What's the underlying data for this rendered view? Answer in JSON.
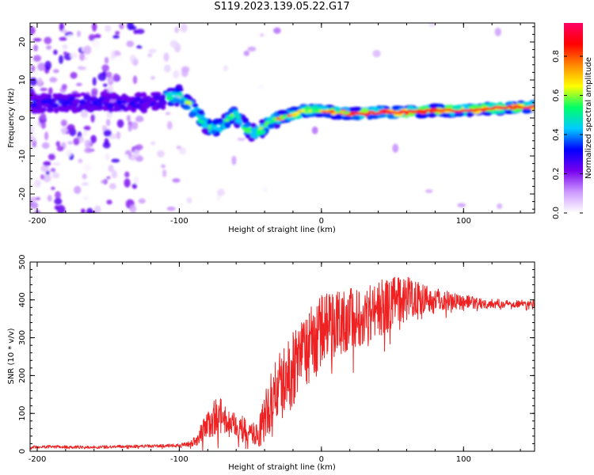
{
  "title": "S119.2023.139.05.22.G17",
  "colors": {
    "snr_line": "#ee2222",
    "axis": "#000000",
    "plot_bg": "#ffffff"
  },
  "colorbar": {
    "label": "Normalized spectral amplitude",
    "ticks": [
      "0.0",
      "0.2",
      "0.4",
      "0.6",
      "0.8"
    ],
    "tick_values": [
      0.0,
      0.2,
      0.4,
      0.6,
      0.8
    ],
    "range": [
      0,
      0.97
    ],
    "colormap": [
      "#ffffff",
      "#cc99ff",
      "#7700ee",
      "#0000ff",
      "#00ccff",
      "#00ff66",
      "#ffff00",
      "#ff8800",
      "#ff0000",
      "#ff0066"
    ]
  },
  "chart_data": [
    {
      "type": "heatmap",
      "xlabel": "Height of straight line (km)",
      "ylabel": "Frequency (Hz)",
      "xlim": [
        -205,
        150
      ],
      "ylim": [
        -25,
        25
      ],
      "xticks": [
        "-200",
        "-100",
        "0",
        "100"
      ],
      "xtick_values": [
        -200,
        -100,
        0,
        100
      ],
      "yticks": [
        "-20",
        "-10",
        "0",
        "10",
        "20"
      ],
      "ytick_values": [
        -20,
        -10,
        0,
        10,
        20
      ],
      "ridge": {
        "x": [
          -205,
          -180,
          -160,
          -140,
          -120,
          -100,
          -92,
          -85,
          -78,
          -70,
          -62,
          -55,
          -48,
          -42,
          -36,
          -30,
          -20,
          -10,
          0,
          20,
          40,
          60,
          80,
          100,
          120,
          150
        ],
        "freq": [
          4,
          4,
          4.2,
          4,
          4,
          6,
          3,
          0,
          -3,
          -2,
          1,
          -2,
          -4,
          -3,
          -1,
          0,
          1,
          2,
          2,
          1,
          1.5,
          1.5,
          2,
          2,
          2.5,
          3
        ]
      }
    },
    {
      "type": "line",
      "xlabel": "Height of straight line (km)",
      "ylabel": "SNR (10 * v/v)",
      "xlim": [
        -205,
        150
      ],
      "ylim": [
        0,
        500
      ],
      "xticks": [
        "-200",
        "-100",
        "0",
        "100"
      ],
      "xtick_values": [
        -200,
        -100,
        0,
        100
      ],
      "yticks": [
        "0",
        "100",
        "200",
        "300",
        "400",
        "500"
      ],
      "ytick_values": [
        0,
        100,
        200,
        300,
        400,
        500
      ],
      "series": [
        {
          "x": [
            -205,
            -190,
            -175,
            -160,
            -145,
            -130,
            -115,
            -100,
            -92,
            -88,
            -84,
            -80,
            -76,
            -72,
            -68,
            -64,
            -60,
            -56,
            -52,
            -48,
            -44,
            -40,
            -36,
            -32,
            -28,
            -24,
            -20,
            -16,
            -12,
            -8,
            -4,
            0,
            4,
            8,
            12,
            16,
            20,
            24,
            28,
            32,
            36,
            40,
            44,
            48,
            52,
            56,
            60,
            64,
            68,
            72,
            76,
            80,
            84,
            88,
            92,
            96,
            100,
            104,
            108,
            112,
            116,
            120,
            125,
            130,
            135,
            140,
            145,
            150
          ],
          "values": [
            12,
            12,
            11,
            11,
            12,
            13,
            14,
            15,
            20,
            30,
            50,
            65,
            90,
            95,
            85,
            70,
            65,
            60,
            50,
            45,
            50,
            90,
            120,
            160,
            175,
            190,
            220,
            240,
            260,
            280,
            300,
            320,
            330,
            335,
            340,
            345,
            350,
            355,
            360,
            365,
            370,
            375,
            380,
            385,
            395,
            400,
            405,
            410,
            410,
            405,
            400,
            400,
            400,
            400,
            400,
            395,
            395,
            395,
            390,
            390,
            390,
            390,
            390,
            390,
            390,
            390,
            390,
            390
          ],
          "noise_amplitude": [
            4,
            4,
            4,
            4,
            4,
            4,
            4,
            5,
            8,
            15,
            30,
            40,
            50,
            50,
            40,
            35,
            35,
            35,
            30,
            30,
            40,
            70,
            80,
            90,
            95,
            100,
            100,
            100,
            100,
            100,
            100,
            95,
            95,
            90,
            90,
            85,
            85,
            85,
            80,
            80,
            80,
            80,
            75,
            70,
            70,
            65,
            60,
            55,
            50,
            45,
            40,
            35,
            30,
            28,
            25,
            22,
            20,
            18,
            16,
            15,
            14,
            12,
            12,
            10,
            10,
            10,
            10,
            10
          ]
        }
      ]
    }
  ]
}
